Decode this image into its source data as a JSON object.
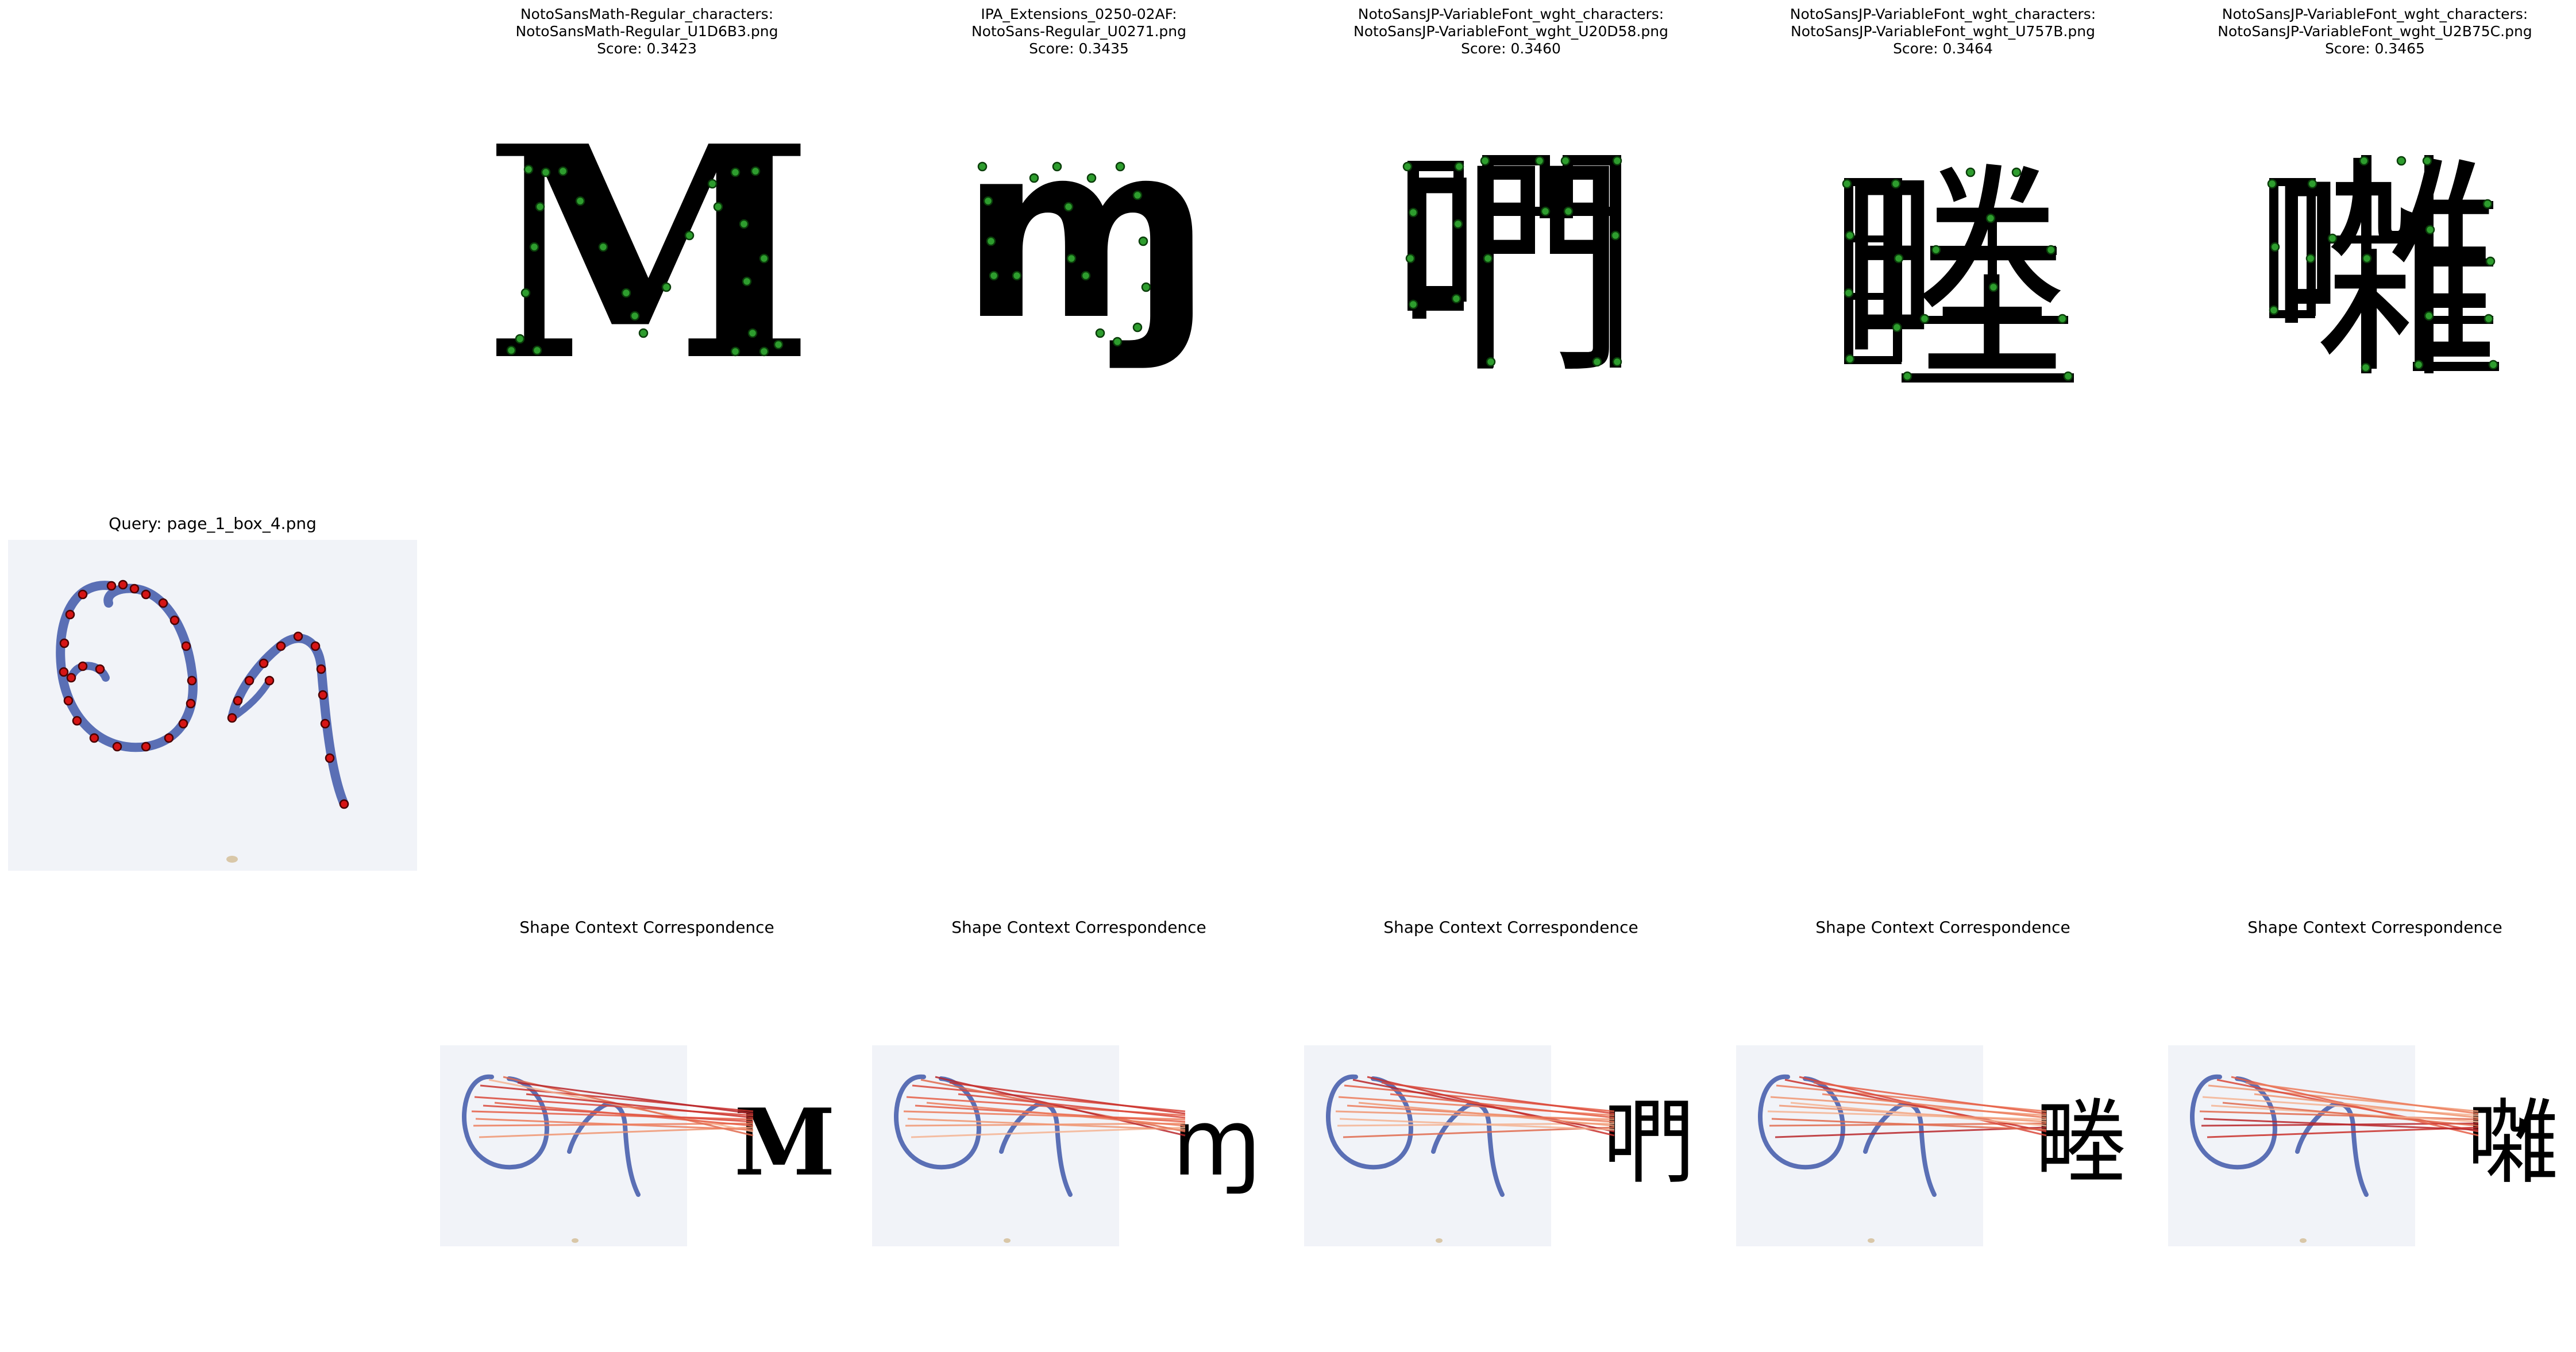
{
  "query": {
    "title": "Query: page_1_box_4.png",
    "handwriting": "on"
  },
  "candidates": [
    {
      "line1": "NotoSansMath-Regular_characters:",
      "line2": "NotoSansMath-Regular_U1D6B3.png",
      "score": "Score: 0.3423",
      "glyph": "𝚳"
    },
    {
      "line1": "IPA_Extensions_0250-02AF:",
      "line2": "NotoSans-Regular_U0271.png",
      "score": "Score: 0.3435",
      "glyph": "ɱ"
    },
    {
      "line1": "NotoSansJP-VariableFont_wght_characters:",
      "line2": "NotoSansJP-VariableFont_wght_U20D58.png",
      "score": "Score: 0.3460",
      "glyph": "𠵘"
    },
    {
      "line1": "NotoSansJP-VariableFont_wght_characters:",
      "line2": "NotoSansJP-VariableFont_wght_U757B.png",
      "score": "Score: 0.3464",
      "glyph": "畻"
    },
    {
      "line1": "NotoSansJP-VariableFont_wght_characters:",
      "line2": "NotoSansJP-VariableFont_wght_U2B75C.png",
      "score": "Score: 0.3465",
      "glyph": "𫝜"
    }
  ],
  "correspondence": [
    {
      "title": "Shape Context Correspondence",
      "glyph": "𝚳"
    },
    {
      "title": "Shape Context Correspondence",
      "glyph": "ɱ"
    },
    {
      "title": "Shape Context Correspondence",
      "glyph": "𠵘"
    },
    {
      "title": "Shape Context Correspondence",
      "glyph": "畻"
    },
    {
      "title": "Shape Context Correspondence",
      "glyph": "𫝜"
    }
  ],
  "colors": {
    "ink": "#5a6fb5",
    "paper": "#f1f3f8",
    "match_dot": "#2e9d2e",
    "query_dot": "#d61515",
    "line_strong": "#c9302c",
    "line_weak": "#f0b39a"
  }
}
